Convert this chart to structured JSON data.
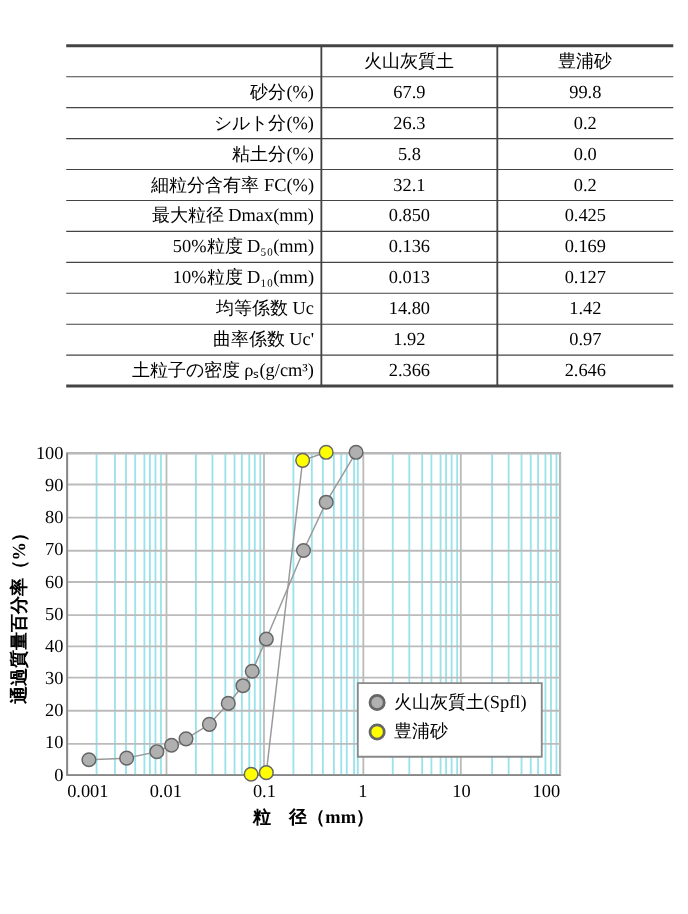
{
  "chart_data": [
    {
      "type": "other",
      "categories": [
        "砂分(%)",
        "シルト分(%)",
        "粘土分(%)",
        "細粒分含有率 FC(%)",
        "最大粒径 Dmax(mm)",
        "50%粒度 D₅₀(mm)",
        "10%粒度 D₁₀(mm)",
        "均等係数 Uc",
        "曲率係数 Uc'",
        "土粒子の密度 ρₛ(g/cm³)"
      ],
      "series": [
        {
          "name": "火山灰質土",
          "values": [
            67.9,
            26.3,
            5.8,
            32.1,
            0.85,
            0.136,
            0.013,
            14.8,
            1.92,
            2.366
          ],
          "value_labels": [
            "67.9",
            "26.3",
            "5.8",
            "32.1",
            "0.850",
            "0.136",
            "0.013",
            "14.80",
            "1.92",
            "2.366"
          ]
        },
        {
          "name": "豊浦砂",
          "values": [
            99.8,
            0.2,
            0.0,
            0.2,
            0.425,
            0.169,
            0.127,
            1.42,
            0.97,
            2.646
          ],
          "value_labels": [
            "99.8",
            "0.2",
            "0.0",
            "0.2",
            "0.425",
            "0.169",
            "0.127",
            "1.42",
            "0.97",
            "2.646"
          ]
        }
      ]
    },
    {
      "type": "line",
      "xlabel": "粒　径（mm）",
      "ylabel": "通過質量百分率（%）",
      "log": "x",
      "xlim": [
        0.001,
        100
      ],
      "xticks": [
        0.001,
        {
          "value": 0.002,
          "label": null
        },
        {
          "value": 0.003,
          "label": null
        },
        {
          "value": 0.004,
          "label": null
        },
        {
          "value": 0.005,
          "label": null
        },
        {
          "value": 0.006,
          "label": null
        },
        {
          "value": 0.007,
          "label": null
        },
        {
          "value": 0.008,
          "label": null
        },
        {
          "value": 0.009,
          "label": null
        },
        0.01,
        {
          "value": 0.02,
          "label": null
        },
        {
          "value": 0.03,
          "label": null
        },
        {
          "value": 0.04,
          "label": null
        },
        {
          "value": 0.05,
          "label": null
        },
        {
          "value": 0.06,
          "label": null
        },
        {
          "value": 0.07,
          "label": null
        },
        {
          "value": 0.08,
          "label": null
        },
        {
          "value": 0.09,
          "label": null
        },
        0.1,
        {
          "value": 0.2,
          "label": null
        },
        {
          "value": 0.3,
          "label": null
        },
        {
          "value": 0.4,
          "label": null
        },
        {
          "value": 0.5,
          "label": null
        },
        {
          "value": 0.6,
          "label": null
        },
        {
          "value": 0.7,
          "label": null
        },
        {
          "value": 0.8,
          "label": null
        },
        {
          "value": 0.9,
          "label": null
        },
        1,
        {
          "value": 2,
          "label": null
        },
        {
          "value": 3,
          "label": null
        },
        {
          "value": 4,
          "label": null
        },
        {
          "value": 5,
          "label": null
        },
        {
          "value": 6,
          "label": null
        },
        {
          "value": 7,
          "label": null
        },
        {
          "value": 8,
          "label": null
        },
        {
          "value": 9,
          "label": null
        },
        10,
        {
          "value": 20,
          "label": null
        },
        {
          "value": 30,
          "label": null
        },
        {
          "value": 40,
          "label": null
        },
        {
          "value": 50,
          "label": null
        },
        {
          "value": 60,
          "label": null
        },
        {
          "value": 70,
          "label": null
        },
        {
          "value": 80,
          "label": null
        },
        {
          "value": 90,
          "label": null
        },
        100
      ],
      "ylim": [
        0,
        100
      ],
      "yticks": [
        0,
        10,
        20,
        30,
        40,
        50,
        60,
        70,
        80,
        90,
        100
      ],
      "grid": true,
      "legend": "bottom right",
      "marker": "circle",
      "line_style": "solid",
      "series": [
        {
          "name": "火山灰質土(Spfl)",
          "color": "#b0b0b0",
          "x": [
            0.0017,
            0.0041,
            0.0083,
            0.0117,
            0.0164,
            0.0283,
            0.044,
            0.062,
            0.077,
            0.107,
            0.255,
            0.433,
            0.87
          ],
          "values": [
            4.5,
            5,
            7,
            9,
            11,
            15.5,
            22,
            27.5,
            32,
            42,
            69.5,
            84.5,
            100
          ]
        },
        {
          "name": "豊浦砂",
          "color": "#ffff00",
          "x": [
            0.075,
            0.107,
            0.25,
            0.433
          ],
          "values": [
            0,
            0.5,
            97.5,
            100
          ]
        }
      ]
    }
  ]
}
